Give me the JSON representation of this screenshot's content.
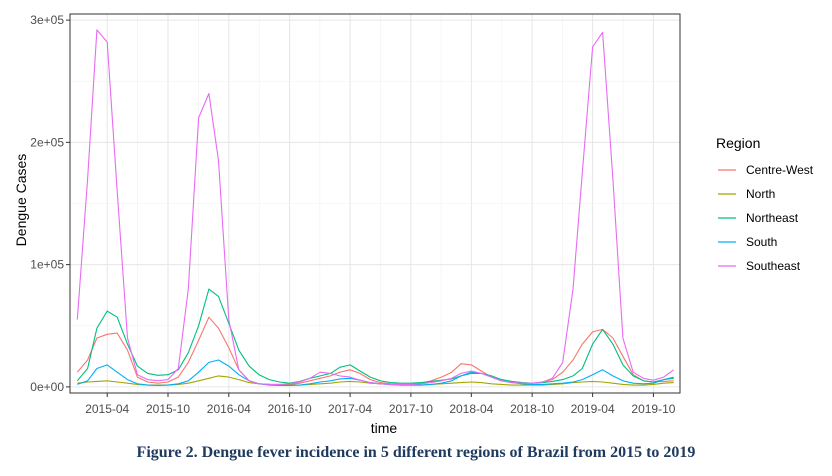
{
  "caption": "Figure 2. Dengue fever incidence in 5 different regions of Brazil from 2015 to 2019",
  "chart_data": {
    "type": "line",
    "xlabel": "time",
    "ylabel": "Dengue Cases",
    "x_ticks": [
      "2015-04",
      "2015-10",
      "2016-04",
      "2016-10",
      "2017-04",
      "2017-10",
      "2018-04",
      "2018-10",
      "2019-04",
      "2019-10"
    ],
    "y_ticks": [
      "0e+00",
      "1e+05",
      "2e+05",
      "3e+05"
    ],
    "xlim": [
      "2014-12-10",
      "2019-12-20"
    ],
    "ylim": [
      -5000,
      305000
    ],
    "grid": true,
    "legend": {
      "title": "Region",
      "position": "right"
    },
    "x": [
      "2015-01",
      "2015-02",
      "2015-03",
      "2015-04",
      "2015-05",
      "2015-06",
      "2015-07",
      "2015-08",
      "2015-09",
      "2015-10",
      "2015-11",
      "2015-12",
      "2016-01",
      "2016-02",
      "2016-03",
      "2016-04",
      "2016-05",
      "2016-06",
      "2016-07",
      "2016-08",
      "2016-09",
      "2016-10",
      "2016-11",
      "2016-12",
      "2017-01",
      "2017-02",
      "2017-03",
      "2017-04",
      "2017-05",
      "2017-06",
      "2017-07",
      "2017-08",
      "2017-09",
      "2017-10",
      "2017-11",
      "2017-12",
      "2018-01",
      "2018-02",
      "2018-03",
      "2018-04",
      "2018-05",
      "2018-06",
      "2018-07",
      "2018-08",
      "2018-09",
      "2018-10",
      "2018-11",
      "2018-12",
      "2019-01",
      "2019-02",
      "2019-03",
      "2019-04",
      "2019-05",
      "2019-06",
      "2019-07",
      "2019-08",
      "2019-09",
      "2019-10",
      "2019-11",
      "2019-12"
    ],
    "series": [
      {
        "name": "Centre-West",
        "color": "#F8766D",
        "values": [
          12000,
          22000,
          40000,
          43000,
          44000,
          30000,
          8000,
          4000,
          3000,
          4000,
          8000,
          20000,
          38000,
          57000,
          48000,
          32000,
          14000,
          5000,
          2500,
          2000,
          2000,
          2000,
          3000,
          5000,
          7000,
          9000,
          12000,
          14000,
          11000,
          6000,
          3500,
          2500,
          2000,
          2000,
          3000,
          5000,
          8000,
          12000,
          19000,
          18000,
          13000,
          8000,
          5000,
          3500,
          3000,
          3000,
          4000,
          6000,
          12000,
          22000,
          35000,
          45000,
          47000,
          40000,
          25000,
          10000,
          5000,
          4000,
          4500,
          5000
        ]
      },
      {
        "name": "North",
        "color": "#A3A500",
        "values": [
          3000,
          4000,
          4500,
          5000,
          4000,
          3000,
          2000,
          1500,
          1500,
          1500,
          2000,
          3000,
          5000,
          7000,
          9000,
          8000,
          6000,
          3500,
          2500,
          2000,
          1500,
          1500,
          1500,
          2000,
          2500,
          3000,
          4000,
          4500,
          4000,
          3000,
          2500,
          2000,
          1500,
          1500,
          1500,
          2000,
          2500,
          3000,
          3500,
          4000,
          3500,
          2500,
          2000,
          1500,
          1500,
          1500,
          1500,
          2000,
          2500,
          3500,
          4000,
          4500,
          4000,
          3000,
          2000,
          1500,
          1500,
          2000,
          3000,
          3500
        ]
      },
      {
        "name": "Northeast",
        "color": "#00BF7D",
        "values": [
          5000,
          15000,
          48000,
          62000,
          57000,
          35000,
          17000,
          11000,
          9500,
          10000,
          14000,
          28000,
          50000,
          80000,
          74000,
          52000,
          30000,
          17000,
          10000,
          6000,
          4000,
          3000,
          4500,
          7000,
          9000,
          11000,
          16000,
          18000,
          13000,
          8000,
          5000,
          3500,
          3000,
          3000,
          3500,
          4500,
          5500,
          6500,
          9000,
          11000,
          11000,
          9000,
          6000,
          4500,
          3500,
          3000,
          3500,
          4500,
          6000,
          9000,
          15000,
          35000,
          47000,
          35000,
          18000,
          9000,
          5000,
          4000,
          6000,
          7000
        ]
      },
      {
        "name": "South",
        "color": "#00B0F6",
        "values": [
          2000,
          5000,
          15000,
          18000,
          12000,
          6000,
          2500,
          1500,
          1200,
          1500,
          2500,
          5000,
          12000,
          20000,
          22000,
          17000,
          10000,
          5000,
          2500,
          1500,
          1200,
          1200,
          1500,
          2500,
          4000,
          5000,
          6500,
          7000,
          5500,
          3500,
          2500,
          1800,
          1500,
          1500,
          1500,
          2000,
          3000,
          5000,
          9000,
          12000,
          11000,
          8000,
          5000,
          3500,
          2500,
          2000,
          2000,
          2500,
          3000,
          4000,
          6000,
          10000,
          14000,
          9000,
          5000,
          3000,
          2500,
          3000,
          6000,
          8000
        ]
      },
      {
        "name": "Southeast",
        "color": "#E76BF3",
        "values": [
          55000,
          170000,
          292000,
          282000,
          160000,
          40000,
          10000,
          6000,
          5000,
          6000,
          15000,
          80000,
          220000,
          240000,
          185000,
          55000,
          14000,
          5000,
          2500,
          2000,
          2000,
          2500,
          4000,
          7000,
          12000,
          11000,
          9000,
          8000,
          5500,
          3500,
          2500,
          2000,
          2000,
          2000,
          2500,
          3500,
          5000,
          7000,
          11000,
          13000,
          11000,
          8000,
          5000,
          3500,
          3000,
          3000,
          4000,
          7000,
          20000,
          80000,
          175000,
          278000,
          290000,
          170000,
          40000,
          12000,
          7000,
          5500,
          8000,
          14000
        ]
      }
    ]
  }
}
